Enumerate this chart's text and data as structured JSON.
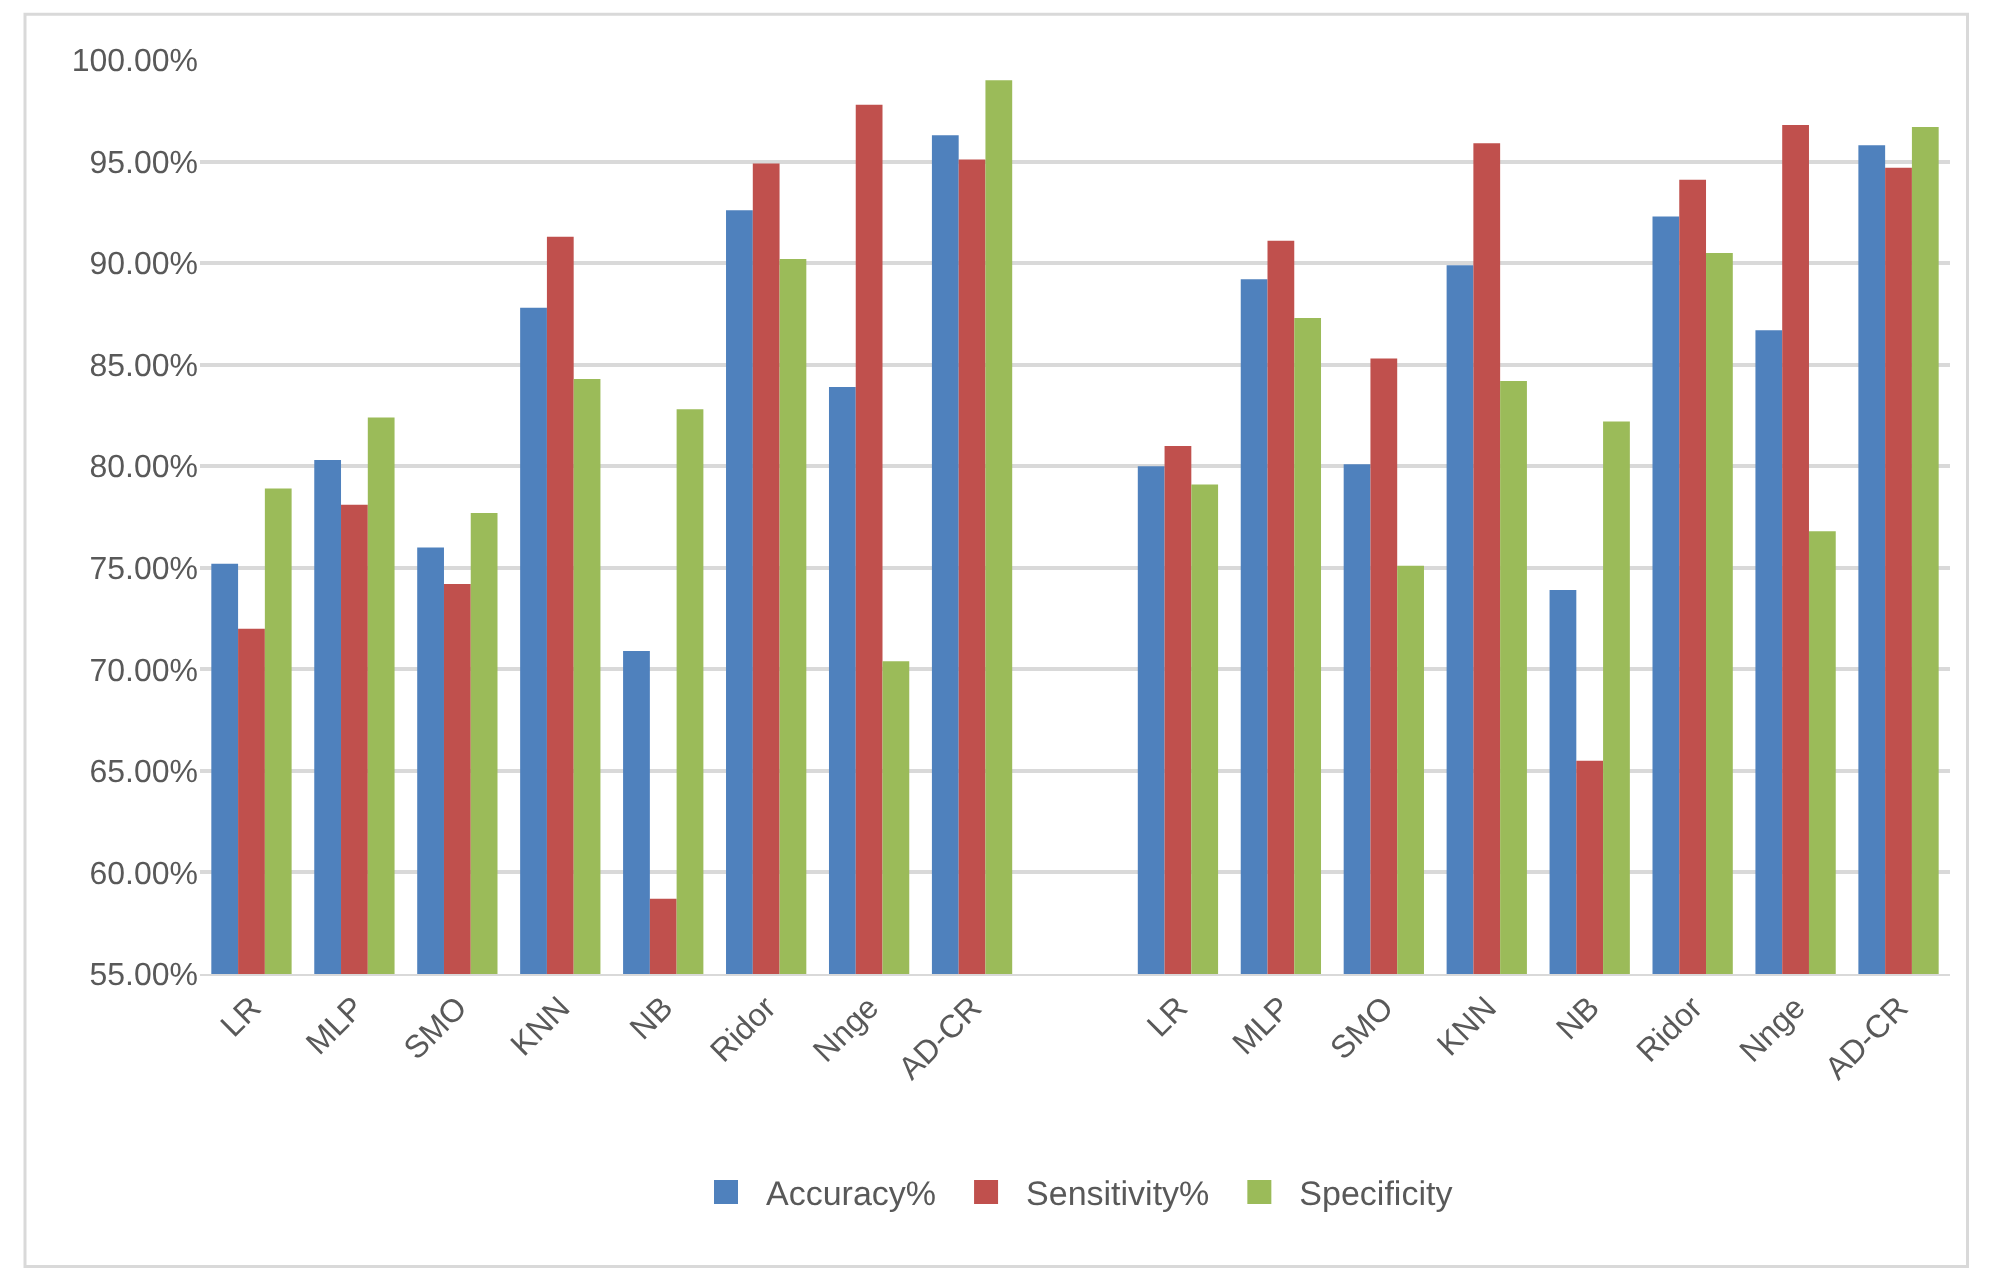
{
  "chart_data": {
    "type": "bar",
    "categories": [
      "LR",
      "MLP",
      "SMO",
      "KNN",
      "NB",
      "Ridor",
      "Nnge",
      "AD-CR",
      null,
      "LR",
      "MLP",
      "SMO",
      "KNN",
      "NB",
      "Ridor",
      "Nnge",
      "AD-CR"
    ],
    "series": [
      {
        "name": "Accuracy%",
        "color": "#4f81bd",
        "values": [
          75.2,
          80.3,
          76.0,
          87.8,
          70.9,
          92.6,
          83.9,
          96.3,
          null,
          80.0,
          89.2,
          80.1,
          89.9,
          73.9,
          92.3,
          86.7,
          95.8
        ]
      },
      {
        "name": "Sensitivity%",
        "color": "#c0504d",
        "values": [
          72.0,
          78.1,
          74.2,
          91.3,
          58.7,
          94.9,
          97.8,
          95.1,
          null,
          81.0,
          91.1,
          85.3,
          95.9,
          65.5,
          94.1,
          96.8,
          94.7
        ]
      },
      {
        "name": "Specificity",
        "color": "#9bbb59",
        "values": [
          78.9,
          82.4,
          77.7,
          84.3,
          82.8,
          90.2,
          70.4,
          99.0,
          null,
          79.1,
          87.3,
          75.1,
          84.2,
          82.2,
          90.5,
          76.8,
          96.7
        ]
      }
    ],
    "ylim": [
      55,
      100
    ],
    "yticks": [
      {
        "value": 55,
        "label": "55.00%"
      },
      {
        "value": 60,
        "label": "60.00%"
      },
      {
        "value": 65,
        "label": "65.00%"
      },
      {
        "value": 70,
        "label": "70.00%"
      },
      {
        "value": 75,
        "label": "75.00%"
      },
      {
        "value": 80,
        "label": "80.00%"
      },
      {
        "value": 85,
        "label": "85.00%"
      },
      {
        "value": 90,
        "label": "90.00%"
      },
      {
        "value": 95,
        "label": "95.00%"
      },
      {
        "value": 100,
        "label": "100.00%"
      }
    ],
    "grid": "y",
    "legend": "bottom"
  }
}
